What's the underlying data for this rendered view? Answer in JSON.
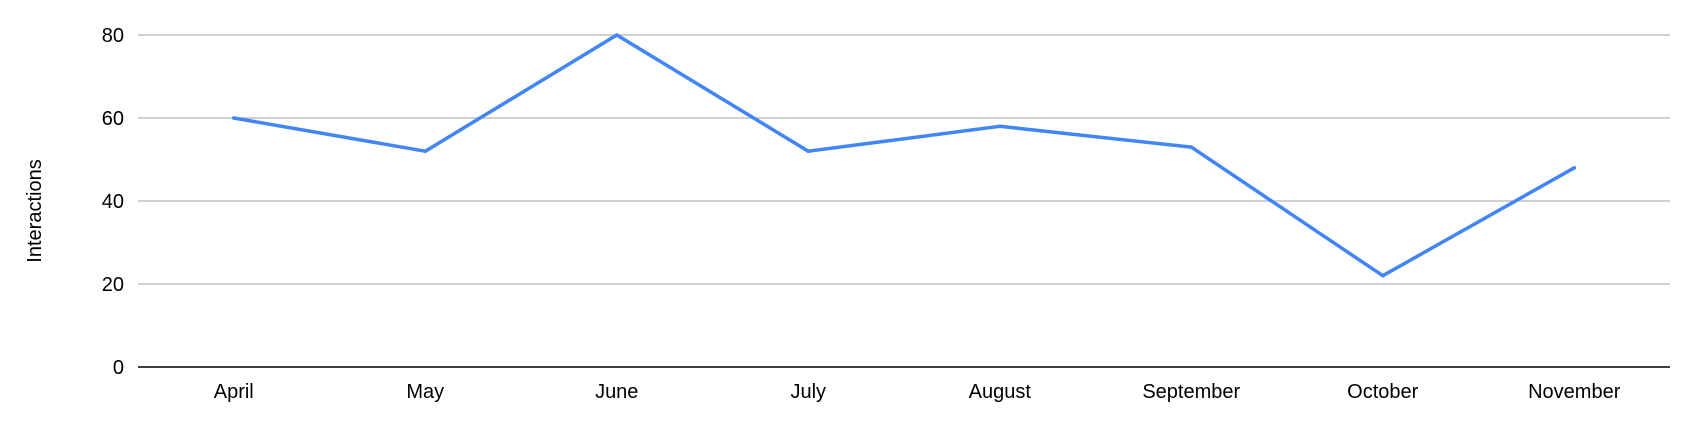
{
  "chart_data": {
    "type": "line",
    "title": "",
    "xlabel": "",
    "ylabel": "Interactions",
    "categories": [
      "April",
      "May",
      "June",
      "July",
      "August",
      "September",
      "October",
      "November"
    ],
    "series": [
      {
        "values": [
          60,
          52,
          80,
          52,
          58,
          53,
          22,
          48
        ],
        "color": "#4285f4"
      }
    ],
    "ylim": [
      0,
      80
    ],
    "yticks": [
      "0",
      "20",
      "40",
      "60",
      "80"
    ],
    "grid": true,
    "legend": "none",
    "gridline_color": "#c0c0c0",
    "axis_color": "#000000"
  }
}
